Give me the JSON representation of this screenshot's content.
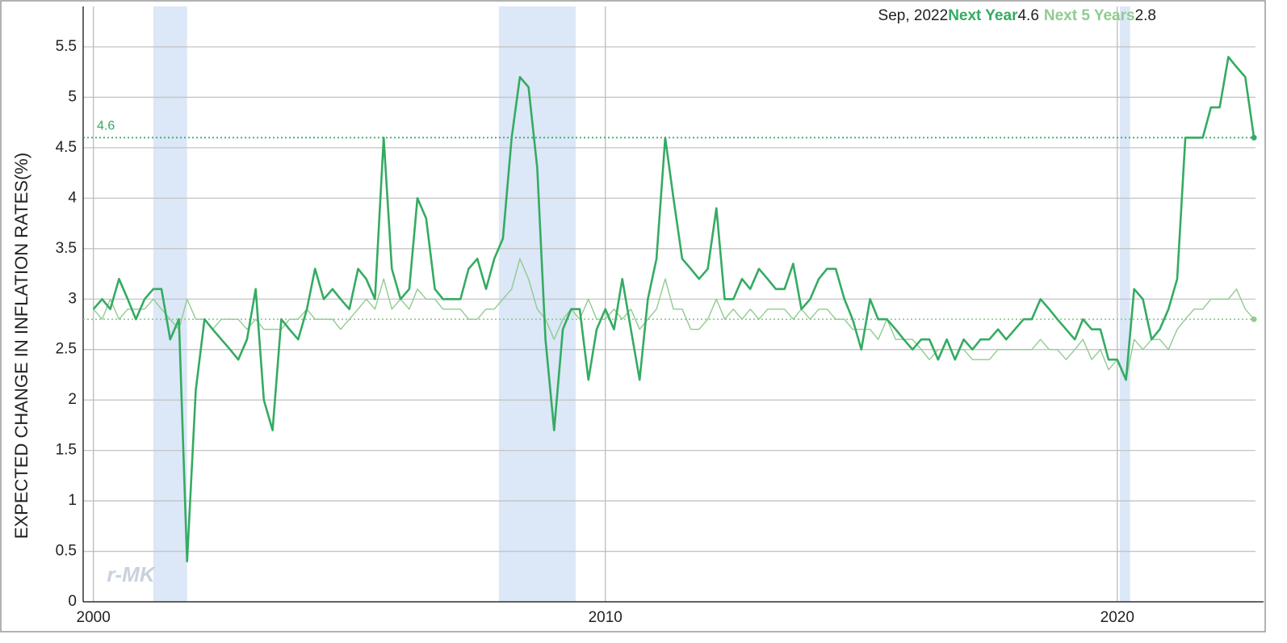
{
  "chart_data": {
    "type": "line",
    "readout_date": "Sep, 2022",
    "y_label": "EXPECTED CHANGE IN INFLATION RATES(%)",
    "watermark": "r-MK",
    "xlim": [
      1999.8,
      2022.7
    ],
    "xticks": [
      2000,
      2010,
      2020
    ],
    "ylim": [
      0,
      5.9
    ],
    "yticks": [
      0,
      0.5,
      1,
      1.5,
      2,
      2.5,
      3,
      3.5,
      4,
      4.5,
      5,
      5.5
    ],
    "grid": true,
    "band_color": "#dce7f7",
    "bands": [
      [
        2001.17,
        2001.83
      ],
      [
        2007.92,
        2009.42
      ],
      [
        2020.05,
        2020.25
      ]
    ],
    "x": [
      2000,
      2000.17,
      2000.33,
      2000.5,
      2000.67,
      2000.83,
      2001,
      2001.17,
      2001.33,
      2001.5,
      2001.67,
      2001.83,
      2002,
      2002.17,
      2002.33,
      2002.5,
      2002.67,
      2002.83,
      2003,
      2003.17,
      2003.33,
      2003.5,
      2003.67,
      2003.83,
      2004,
      2004.17,
      2004.33,
      2004.5,
      2004.67,
      2004.83,
      2005,
      2005.17,
      2005.33,
      2005.5,
      2005.67,
      2005.83,
      2006,
      2006.17,
      2006.33,
      2006.5,
      2006.67,
      2006.83,
      2007,
      2007.17,
      2007.33,
      2007.5,
      2007.67,
      2007.83,
      2008,
      2008.17,
      2008.33,
      2008.5,
      2008.67,
      2008.83,
      2009,
      2009.17,
      2009.33,
      2009.5,
      2009.67,
      2009.83,
      2010,
      2010.17,
      2010.33,
      2010.5,
      2010.67,
      2010.83,
      2011,
      2011.17,
      2011.33,
      2011.5,
      2011.67,
      2011.83,
      2012,
      2012.17,
      2012.33,
      2012.5,
      2012.67,
      2012.83,
      2013,
      2013.17,
      2013.33,
      2013.5,
      2013.67,
      2013.83,
      2014,
      2014.17,
      2014.33,
      2014.5,
      2014.67,
      2014.83,
      2015,
      2015.17,
      2015.33,
      2015.5,
      2015.67,
      2015.83,
      2016,
      2016.17,
      2016.33,
      2016.5,
      2016.67,
      2016.83,
      2017,
      2017.17,
      2017.33,
      2017.5,
      2017.67,
      2017.83,
      2018,
      2018.17,
      2018.33,
      2018.5,
      2018.67,
      2018.83,
      2019,
      2019.17,
      2019.33,
      2019.5,
      2019.67,
      2019.83,
      2020,
      2020.17,
      2020.33,
      2020.5,
      2020.67,
      2020.83,
      2021,
      2021.17,
      2021.33,
      2021.5,
      2021.67,
      2021.83,
      2022,
      2022.17,
      2022.33,
      2022.5,
      2022.67
    ],
    "series": [
      {
        "name": "Next Year",
        "color": "#34ab62",
        "width": 2.6,
        "values": [
          2.9,
          3.0,
          2.9,
          3.2,
          3.0,
          2.8,
          3.0,
          3.1,
          3.1,
          2.6,
          2.8,
          0.4,
          2.1,
          2.8,
          2.7,
          2.6,
          2.5,
          2.4,
          2.6,
          3.1,
          2.0,
          1.7,
          2.8,
          2.7,
          2.6,
          2.9,
          3.3,
          3.0,
          3.1,
          3.0,
          2.9,
          3.3,
          3.2,
          3.0,
          4.6,
          3.3,
          3.0,
          3.1,
          4.0,
          3.8,
          3.1,
          3.0,
          3.0,
          3.0,
          3.3,
          3.4,
          3.1,
          3.4,
          3.6,
          4.6,
          5.2,
          5.1,
          4.3,
          2.6,
          1.7,
          2.7,
          2.9,
          2.9,
          2.2,
          2.7,
          2.9,
          2.7,
          3.2,
          2.7,
          2.2,
          3.0,
          3.4,
          4.6,
          4.0,
          3.4,
          3.3,
          3.2,
          3.3,
          3.9,
          3.0,
          3.0,
          3.2,
          3.1,
          3.3,
          3.2,
          3.1,
          3.1,
          3.35,
          2.9,
          3.0,
          3.2,
          3.3,
          3.3,
          3.0,
          2.8,
          2.5,
          3.0,
          2.8,
          2.8,
          2.7,
          2.6,
          2.5,
          2.6,
          2.6,
          2.4,
          2.6,
          2.4,
          2.6,
          2.5,
          2.6,
          2.6,
          2.7,
          2.6,
          2.7,
          2.8,
          2.8,
          3.0,
          2.9,
          2.8,
          2.7,
          2.6,
          2.8,
          2.7,
          2.7,
          2.4,
          2.4,
          2.2,
          3.1,
          3.0,
          2.6,
          2.7,
          2.9,
          3.2,
          4.6,
          4.6,
          4.6,
          4.9,
          4.9,
          5.4,
          5.3,
          5.2,
          4.6
        ]
      },
      {
        "name": "Next 5 Years",
        "color": "#90cb90",
        "width": 1.4,
        "values": [
          2.9,
          2.8,
          3.0,
          2.8,
          2.9,
          2.9,
          2.9,
          3.0,
          2.9,
          2.8,
          2.7,
          3.0,
          2.8,
          2.8,
          2.7,
          2.8,
          2.8,
          2.8,
          2.7,
          2.8,
          2.7,
          2.7,
          2.7,
          2.8,
          2.8,
          2.9,
          2.8,
          2.8,
          2.8,
          2.7,
          2.8,
          2.9,
          3.0,
          2.9,
          3.2,
          2.9,
          3.0,
          2.9,
          3.1,
          3.0,
          3.0,
          2.9,
          2.9,
          2.9,
          2.8,
          2.8,
          2.9,
          2.9,
          3.0,
          3.1,
          3.4,
          3.2,
          2.9,
          2.8,
          2.6,
          2.8,
          2.9,
          2.8,
          3.0,
          2.8,
          2.8,
          2.9,
          2.8,
          2.9,
          2.7,
          2.8,
          2.9,
          3.2,
          2.9,
          2.9,
          2.7,
          2.7,
          2.8,
          3.0,
          2.8,
          2.9,
          2.8,
          2.9,
          2.8,
          2.9,
          2.9,
          2.9,
          2.8,
          2.9,
          2.8,
          2.9,
          2.9,
          2.8,
          2.8,
          2.7,
          2.7,
          2.7,
          2.6,
          2.8,
          2.6,
          2.6,
          2.6,
          2.5,
          2.4,
          2.5,
          2.5,
          2.5,
          2.5,
          2.4,
          2.4,
          2.4,
          2.5,
          2.5,
          2.5,
          2.5,
          2.5,
          2.6,
          2.5,
          2.5,
          2.4,
          2.5,
          2.6,
          2.4,
          2.5,
          2.3,
          2.4,
          2.2,
          2.6,
          2.5,
          2.6,
          2.6,
          2.5,
          2.7,
          2.8,
          2.9,
          2.9,
          3.0,
          3.0,
          3.0,
          3.1,
          2.9,
          2.8
        ]
      }
    ]
  }
}
